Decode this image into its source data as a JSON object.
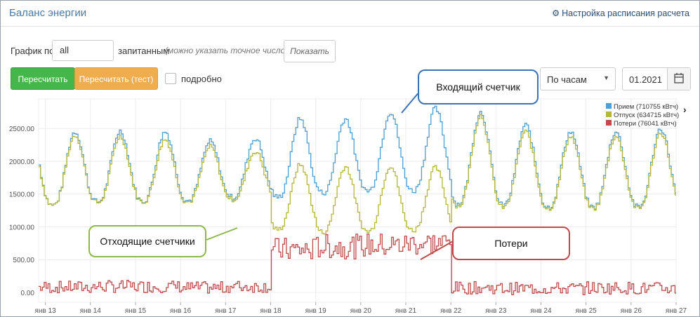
{
  "header": {
    "title": "Баланс энергии",
    "schedule_link": "Настройка расписания расчета"
  },
  "controls": {
    "graph_label": "График по",
    "count_value": "all",
    "count_suffix": "запитанным",
    "count_hint": "(можно указать точное число)",
    "show_button": "Показать",
    "recalc_button": "Пересчитать",
    "recalc_test_button": "Пересчитать (тест)",
    "detail_label": "подробно",
    "period_select": "По часам",
    "month_value": "01.2021"
  },
  "colors": {
    "in": "#4e9ed1",
    "out": "#b5b735",
    "loss": "#c0494b",
    "callout_blue": "#3b73b9",
    "callout_green": "#8db84a",
    "callout_red": "#c0494b",
    "btn_green": "#45b649",
    "btn_orange": "#f0ad4e"
  },
  "callouts": {
    "incoming": "Входящий счетчик",
    "outgoing": "Отходящие счетчики",
    "losses": "Потери"
  },
  "chart_data": {
    "type": "line",
    "x_tick_labels": [
      "янв 13",
      "янв 14",
      "янв 15",
      "янв 16",
      "янв 17",
      "янв 18",
      "янв 19",
      "янв 20",
      "янв 21",
      "янв 22",
      "янв 23",
      "янв 24",
      "янв 25",
      "янв 26",
      "янв 27"
    ],
    "y_tick_labels": [
      "0.00",
      "500.00",
      "1000.00",
      "1500.00",
      "2000.00",
      "2500.00"
    ],
    "ylim": [
      -150,
      2950
    ],
    "x_range_days": [
      12.85,
      27.0
    ],
    "legend_position": "top-right",
    "series": [
      {
        "name": "Прием (710755 кВтч)",
        "color": "#4e9ed1",
        "daily_peaks": [
          2450,
          2460,
          2450,
          2300,
          2350,
          2650,
          2650,
          2750,
          2800,
          2750,
          2550,
          2450,
          2450,
          2500,
          2500
        ],
        "daily_troughs": [
          1330,
          1380,
          1390,
          1400,
          1450,
          1450,
          1520,
          1550,
          1550,
          1350,
          1330,
          1300,
          1300,
          1300,
          1320
        ]
      },
      {
        "name": "Отпуск (634715 кВтч)",
        "color": "#b5b735",
        "daily_peaks": [
          2400,
          2380,
          2330,
          2220,
          2150,
          1950,
          1920,
          1930,
          1900,
          2700,
          2450,
          2380,
          2380,
          2440,
          2450
        ],
        "daily_troughs": [
          1330,
          1370,
          1380,
          1380,
          1420,
          960,
          920,
          930,
          950,
          1320,
          1300,
          1280,
          1280,
          1280,
          1290
        ]
      },
      {
        "name": "Потери (76041 кВтч)",
        "color": "#c0494b",
        "daily_mean": [
          80,
          90,
          90,
          70,
          90,
          650,
          700,
          720,
          750,
          70,
          60,
          60,
          70,
          60,
          70
        ]
      }
    ]
  }
}
